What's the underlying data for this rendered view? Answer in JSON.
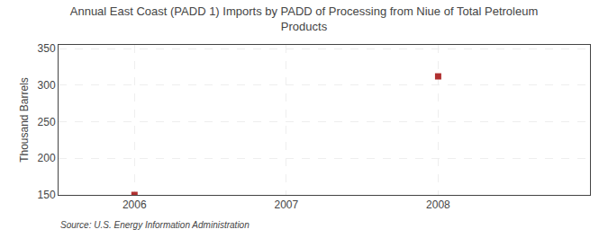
{
  "chart_data": {
    "type": "scatter",
    "title": "Annual East Coast (PADD 1) Imports by PADD of Processing from Niue of Total Petroleum\nProducts",
    "ylabel": "Thousand Barrels",
    "annotations": [
      "Source: U.S. Energy Information Administration"
    ],
    "x": [
      2006,
      2008
    ],
    "values": [
      150,
      312
    ],
    "color": "#b03030",
    "marker": "square",
    "xlim": [
      2005.5,
      2009.0
    ],
    "ylim": [
      150,
      355
    ],
    "xticks": [
      2006,
      2007,
      2008
    ],
    "yticks": [
      150,
      200,
      250,
      300,
      350
    ],
    "grid": true
  }
}
